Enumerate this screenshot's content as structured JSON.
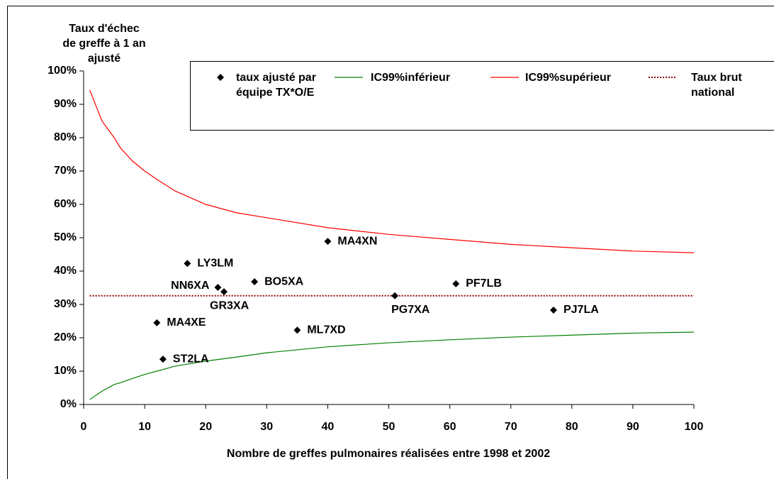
{
  "chart_data": {
    "type": "scatter",
    "xlabel": "Nombre de greffes pulmonaires réalisées entre 1998 et 2002",
    "ylabel": "Taux d'échec de greffe à 1 an ajusté",
    "xlim": [
      0,
      100
    ],
    "xticks": [
      0,
      10,
      20,
      30,
      40,
      50,
      60,
      70,
      80,
      90,
      100
    ],
    "ylim": [
      0,
      100
    ],
    "yticks": [
      {
        "value": 0,
        "label": "0%"
      },
      {
        "value": 10,
        "label": "10%"
      },
      {
        "value": 20,
        "label": "20%"
      },
      {
        "value": 30,
        "label": "30%"
      },
      {
        "value": 40,
        "label": "40%"
      },
      {
        "value": 50,
        "label": "50%"
      },
      {
        "value": 60,
        "label": "60%"
      },
      {
        "value": 70,
        "label": "70%"
      },
      {
        "value": 80,
        "label": "80%"
      },
      {
        "value": 90,
        "label": "90%"
      },
      {
        "value": 100,
        "label": "100%"
      }
    ],
    "series": [
      {
        "name": "taux ajusté par équipe TX*O/E",
        "type": "scatter",
        "color": "#000000",
        "x": [
          17,
          40,
          22,
          23,
          28,
          61,
          51,
          77,
          12,
          35,
          13
        ],
        "values": [
          42.3,
          48.9,
          35.1,
          33.8,
          36.8,
          36.2,
          32.6,
          28.3,
          24.5,
          22.3,
          13.6
        ],
        "labels": [
          "LY3LM",
          "MA4XN",
          "NN6XA",
          "GR3XA",
          "BO5XA",
          "PF7LB",
          "PG7XA",
          "PJ7LA",
          "MA4XE",
          "ML7XD",
          "ST2LA"
        ]
      },
      {
        "name": "IC99%inférieur",
        "type": "line",
        "color": "#008000",
        "x": [
          1,
          3,
          5,
          6,
          8,
          10,
          12,
          15,
          20,
          25,
          30,
          40,
          50,
          60,
          70,
          80,
          90,
          100
        ],
        "values": [
          1.5,
          4,
          6,
          6.5,
          7.8,
          9,
          10,
          11.5,
          13,
          14.2,
          15.5,
          17.3,
          18.5,
          19.4,
          20.2,
          20.8,
          21.4,
          21.7
        ]
      },
      {
        "name": "IC99%supérieur",
        "type": "line",
        "color": "#ff0000",
        "x": [
          1,
          3,
          5,
          6,
          8,
          10,
          12,
          15,
          20,
          25,
          30,
          40,
          50,
          60,
          70,
          80,
          90,
          100
        ],
        "values": [
          94.3,
          85,
          80,
          77,
          73,
          70,
          67.5,
          64,
          60,
          57.5,
          56,
          53,
          51,
          49.5,
          48,
          47,
          46,
          45.5
        ]
      },
      {
        "name": "Taux brut national",
        "type": "dotted",
        "color": "#8b0000",
        "x": [
          1,
          100
        ],
        "values": [
          32.6,
          32.6
        ]
      }
    ]
  }
}
